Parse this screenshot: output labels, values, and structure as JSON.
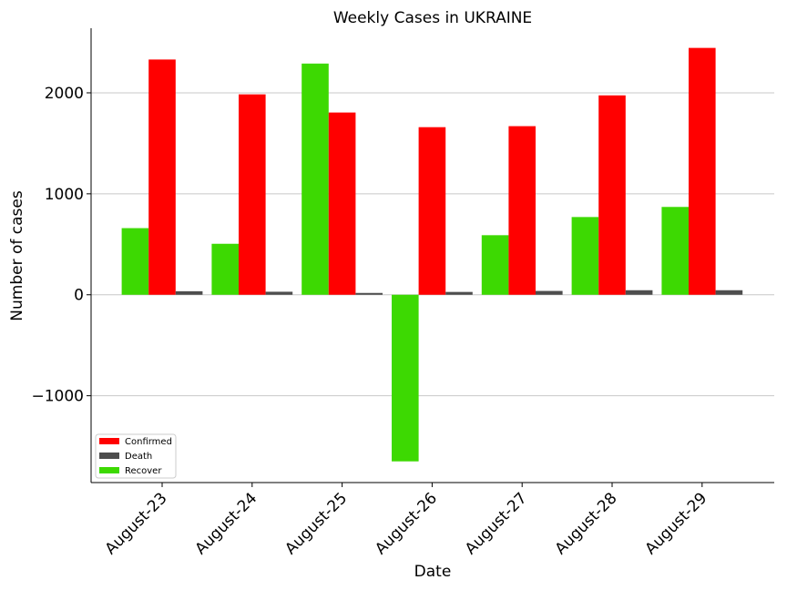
{
  "chart_data": {
    "type": "bar",
    "title": "Weekly Cases in UKRAINE",
    "xlabel": "Date",
    "ylabel": "Number of cases",
    "categories": [
      "August-23",
      "August-24",
      "August-25",
      "August-26",
      "August-27",
      "August-28",
      "August-29"
    ],
    "yticks": [
      -1000,
      0,
      1000,
      2000
    ],
    "ylim": [
      -1860,
      2640
    ],
    "grid": "horizontal",
    "legend_position": "lower-left",
    "legend_order": [
      "Confirmed",
      "Death",
      "Recover"
    ],
    "bar_order": [
      "Recover",
      "Confirmed",
      "Death"
    ],
    "series": [
      {
        "name": "Confirmed",
        "color": "#ff0000",
        "values": [
          2330,
          1985,
          1805,
          1660,
          1670,
          1975,
          2445
        ]
      },
      {
        "name": "Death",
        "color": "#4d4d4d",
        "values": [
          35,
          30,
          18,
          28,
          38,
          45,
          45
        ]
      },
      {
        "name": "Recover",
        "color": "#3dd902",
        "values": [
          660,
          505,
          2290,
          -1650,
          590,
          770,
          870
        ]
      }
    ]
  }
}
